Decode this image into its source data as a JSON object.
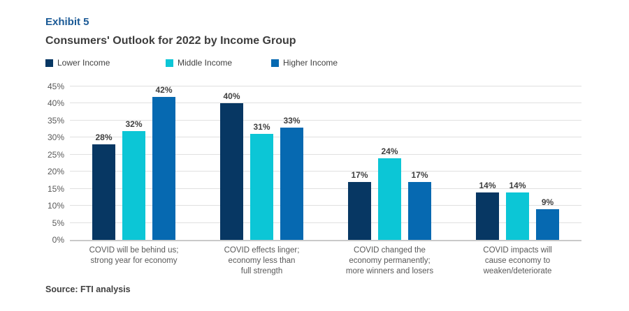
{
  "header": {
    "exhibit": "Exhibit 5",
    "title": "Consumers' Outlook for 2022 by Income Group"
  },
  "source": "Source: FTI analysis",
  "colors": {
    "exhibit_blue": "#1b5a96",
    "title_gray": "#3d3d3d",
    "axis_text": "#595959",
    "gridline": "#e0e0e0",
    "axis_line": "#c9c9c9"
  },
  "chart_data": {
    "type": "bar",
    "title": "Consumers' Outlook for 2022 by Income Group",
    "categories": [
      "COVID will be behind us;\nstrong year for economy",
      "COVID effects linger;\neconomy less than\nfull strength",
      "COVID changed the\neconomy permanently;\nmore winners and losers",
      "COVID impacts will\ncause economy to\nweaken/deteriorate"
    ],
    "series": [
      {
        "name": "Lower Income",
        "color": "#073763",
        "values": [
          28,
          40,
          17,
          14
        ]
      },
      {
        "name": "Middle Income",
        "color": "#0cc6d6",
        "values": [
          32,
          31,
          24,
          14
        ]
      },
      {
        "name": "Higher Income",
        "color": "#0669b1",
        "values": [
          42,
          33,
          17,
          9
        ]
      }
    ],
    "value_label_suffix": "%",
    "xlabel": "",
    "ylabel": "",
    "ylim": [
      0,
      45
    ],
    "ytick_values": [
      0,
      5,
      10,
      15,
      20,
      25,
      30,
      35,
      40,
      45
    ],
    "ytick_labels": [
      "0%",
      "5%",
      "10%",
      "15%",
      "20%",
      "25%",
      "30%",
      "35%",
      "40%",
      "45%"
    ],
    "grid": true,
    "legend_position": "top"
  }
}
